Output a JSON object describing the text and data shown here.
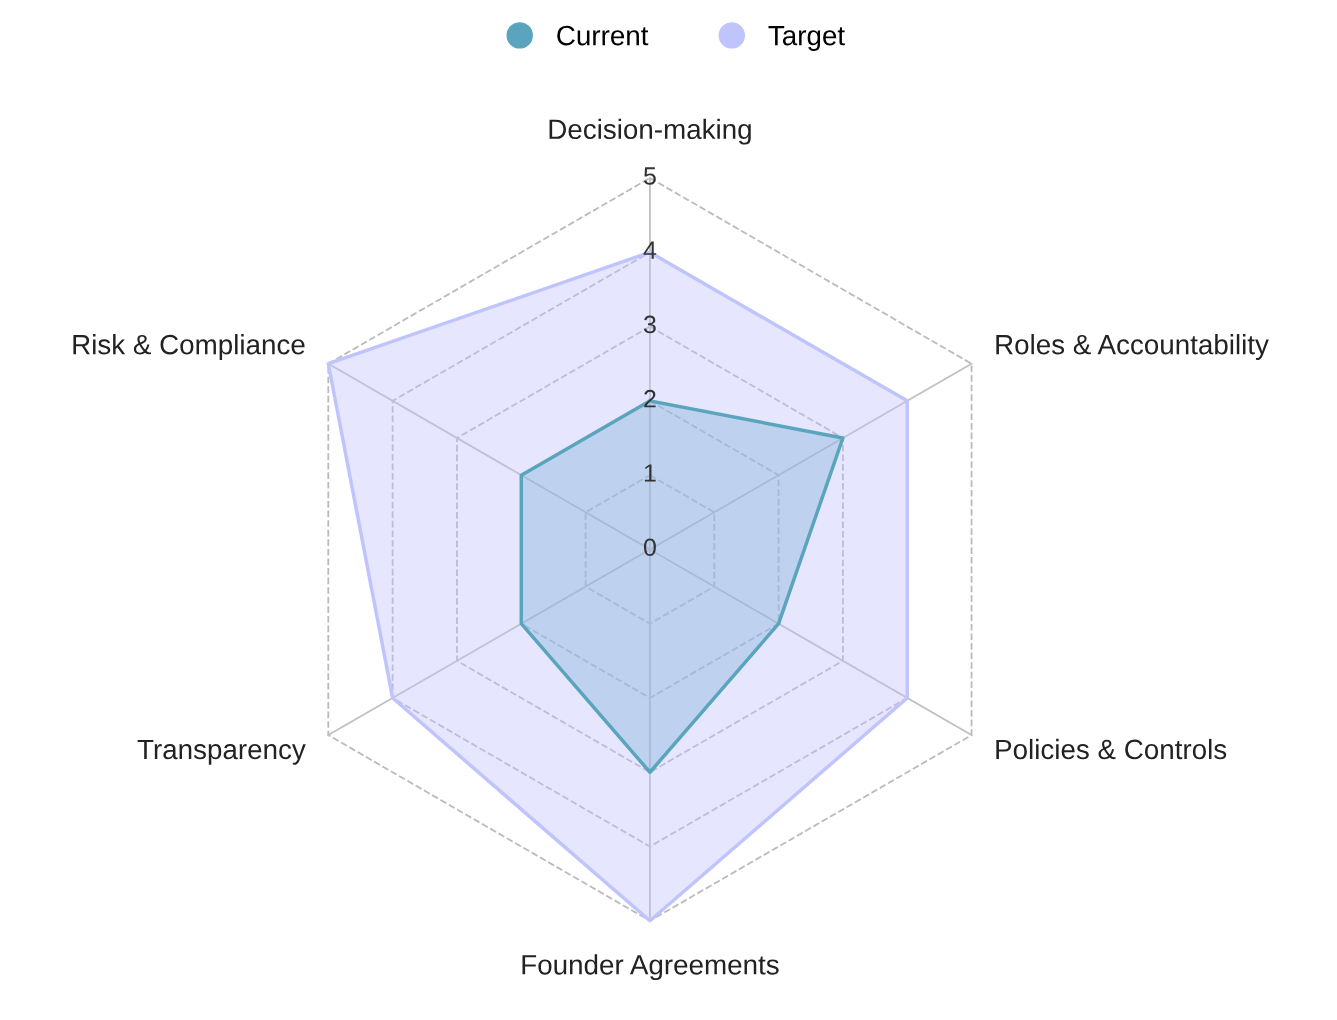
{
  "chart_data": {
    "type": "radar",
    "categories": [
      "Decision-making",
      "Roles & Accountability",
      "Policies & Controls",
      "Founder Agreements",
      "Transparency",
      "Risk & Compliance"
    ],
    "series": [
      {
        "name": "Current",
        "color": "#5aa5bd",
        "values": [
          2,
          3,
          2,
          3,
          2,
          2
        ]
      },
      {
        "name": "Target",
        "color": "#c0c4fc",
        "values": [
          4,
          4,
          4,
          5,
          4,
          5
        ]
      }
    ],
    "ylim": [
      0,
      5
    ],
    "yticks": [
      0,
      1,
      2,
      3,
      4,
      5
    ],
    "grid": true,
    "legend": "top"
  }
}
